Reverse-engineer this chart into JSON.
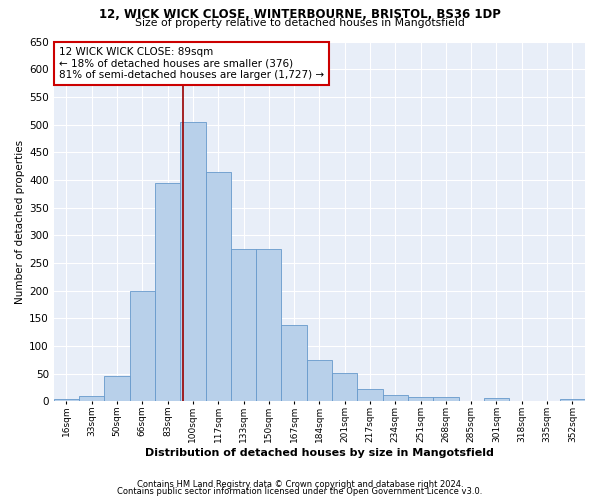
{
  "title_line1": "12, WICK WICK CLOSE, WINTERBOURNE, BRISTOL, BS36 1DP",
  "title_line2": "Size of property relative to detached houses in Mangotsfield",
  "xlabel": "Distribution of detached houses by size in Mangotsfield",
  "ylabel": "Number of detached properties",
  "bar_labels": [
    "16sqm",
    "33sqm",
    "50sqm",
    "66sqm",
    "83sqm",
    "100sqm",
    "117sqm",
    "133sqm",
    "150sqm",
    "167sqm",
    "184sqm",
    "201sqm",
    "217sqm",
    "234sqm",
    "251sqm",
    "268sqm",
    "285sqm",
    "301sqm",
    "318sqm",
    "335sqm",
    "352sqm"
  ],
  "bar_values": [
    5,
    10,
    45,
    200,
    395,
    505,
    415,
    275,
    275,
    138,
    75,
    52,
    22,
    12,
    8,
    8,
    0,
    6,
    0,
    0,
    4
  ],
  "bar_color": "#b8d0ea",
  "bar_edgecolor": "#6699cc",
  "fig_bg_color": "#ffffff",
  "plot_bg_color": "#e8eef8",
  "grid_color": "#ffffff",
  "vline_x": 4.62,
  "vline_color": "#990000",
  "annotation_text": "12 WICK WICK CLOSE: 89sqm\n← 18% of detached houses are smaller (376)\n81% of semi-detached houses are larger (1,727) →",
  "annotation_box_facecolor": "#ffffff",
  "annotation_box_edgecolor": "#cc0000",
  "ylim": [
    0,
    650
  ],
  "yticks": [
    0,
    50,
    100,
    150,
    200,
    250,
    300,
    350,
    400,
    450,
    500,
    550,
    600,
    650
  ],
  "footnote1": "Contains HM Land Registry data © Crown copyright and database right 2024.",
  "footnote2": "Contains public sector information licensed under the Open Government Licence v3.0."
}
